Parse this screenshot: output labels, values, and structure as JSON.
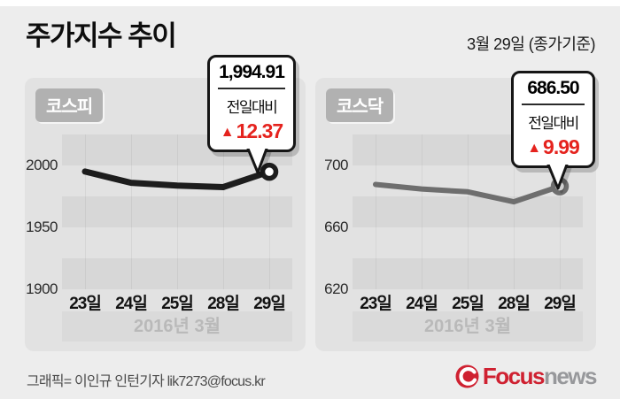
{
  "header": {
    "title": "주가지수 추이",
    "date_note": "3월 29일 (종가기준)"
  },
  "colors": {
    "page_bg": "#ededed",
    "panel_bg": "#e2e2e2",
    "band": "#d7d7d7",
    "kospi_line": "#1d1d1d",
    "kosdaq_line": "#6e6e6e",
    "change_red": "#e5231e",
    "brand_red": "#cf2131",
    "brand_gray": "#97989b"
  },
  "chart_data": [
    {
      "type": "line",
      "title": "코스피",
      "x": [
        "23일",
        "24일",
        "25일",
        "28일",
        "29일"
      ],
      "values": [
        1995.1,
        1986.0,
        1983.8,
        1982.5,
        1994.91
      ],
      "ylim": [
        1900,
        2025
      ],
      "yticks": [
        "2000",
        "1950",
        "1900"
      ],
      "x_axis_note": "2016년  3월",
      "grid": "horizontal-bands",
      "line_color": "#1d1d1d",
      "line_width": 7,
      "legend": "none",
      "callout": {
        "value": "1,994.91",
        "label": "전일대비",
        "symbol": "▲",
        "change": "12.37",
        "direction": "up"
      }
    },
    {
      "type": "line",
      "title": "코스닥",
      "x": [
        "23일",
        "24일",
        "25일",
        "28일",
        "29일"
      ],
      "values": [
        687.7,
        684.8,
        683.0,
        676.5,
        686.5
      ],
      "ylim": [
        620,
        720
      ],
      "yticks": [
        "700",
        "660",
        "620"
      ],
      "x_axis_note": "2016년  3월",
      "grid": "horizontal-bands",
      "line_color": "#6e6e6e",
      "line_width": 6,
      "legend": "none",
      "callout": {
        "value": "686.50",
        "label": "전일대비",
        "symbol": "▲",
        "change": "9.99",
        "direction": "up"
      }
    }
  ],
  "footer": {
    "credit": "그래픽= 이인규 인턴기자 lik7273@focus.kr",
    "logo_brand": "Focus",
    "logo_suffix": "news"
  }
}
